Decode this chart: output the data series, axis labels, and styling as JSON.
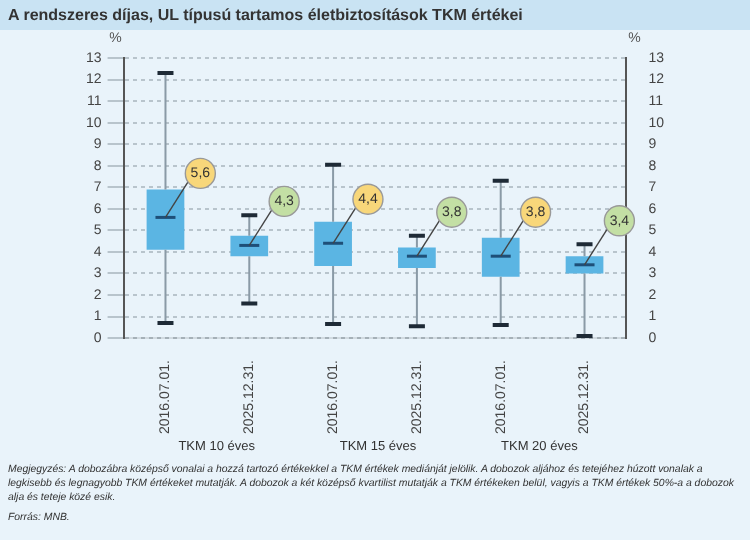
{
  "chart_data": {
    "type": "box",
    "title": "A rendszeres díjas, UL típusú tartamos életbiztosítások TKM értékei",
    "categories": [
      "2016.07.01.",
      "2025.12.31.",
      "2016.07.01.",
      "2025.12.31.",
      "2016.07.01.",
      "2025.12.31."
    ],
    "boxes": [
      {
        "low": 0.7,
        "q1": 4.1,
        "median": 5.6,
        "q3": 6.9,
        "high": 12.3
      },
      {
        "low": 1.6,
        "q1": 3.8,
        "median": 4.3,
        "q3": 4.75,
        "high": 5.7
      },
      {
        "low": 0.65,
        "q1": 3.35,
        "median": 4.4,
        "q3": 5.4,
        "high": 8.05
      },
      {
        "low": 0.55,
        "q1": 3.25,
        "median": 3.8,
        "q3": 4.2,
        "high": 4.75
      },
      {
        "low": 0.6,
        "q1": 2.85,
        "median": 3.8,
        "q3": 4.65,
        "high": 7.3
      },
      {
        "low": 0.1,
        "q1": 3.0,
        "median": 3.4,
        "q3": 3.8,
        "high": 4.35
      }
    ],
    "value_labels": [
      "5,6",
      "4,3",
      "4,4",
      "3,8",
      "3,8",
      "3,4"
    ],
    "color": "#5bb5e3",
    "ylabel": "%",
    "y2label": "%",
    "ylim": [
      0,
      13
    ],
    "yticks": [
      0,
      1,
      2,
      3,
      4,
      5,
      6,
      7,
      8,
      9,
      10,
      11,
      12,
      13
    ],
    "y2lim": [
      0,
      13
    ],
    "y2ticks": [
      0,
      1,
      2,
      3,
      4,
      5,
      6,
      7,
      8,
      9,
      10,
      11,
      12,
      13
    ],
    "grid": "y",
    "legend": false,
    "annotations": [
      "TKM 10 éves",
      "TKM 15 éves",
      "TKM 20 éves",
      "Megjegyzés: A dobozábra középső vonalai a hozzá tartozó értékekkel a TKM értékek mediánját jelölik. A dobozok aljához és tetejéhez húzott vonalak a legkisebb és legnagyobb TKM értékeket mutatják. A dobozok a két középső kvartilist mutatják a TKM értékeken belül, vagyis a TKM értékek 50%-a a dobozok alja és teteje közé esik.",
      "Forrás: MNB."
    ]
  }
}
